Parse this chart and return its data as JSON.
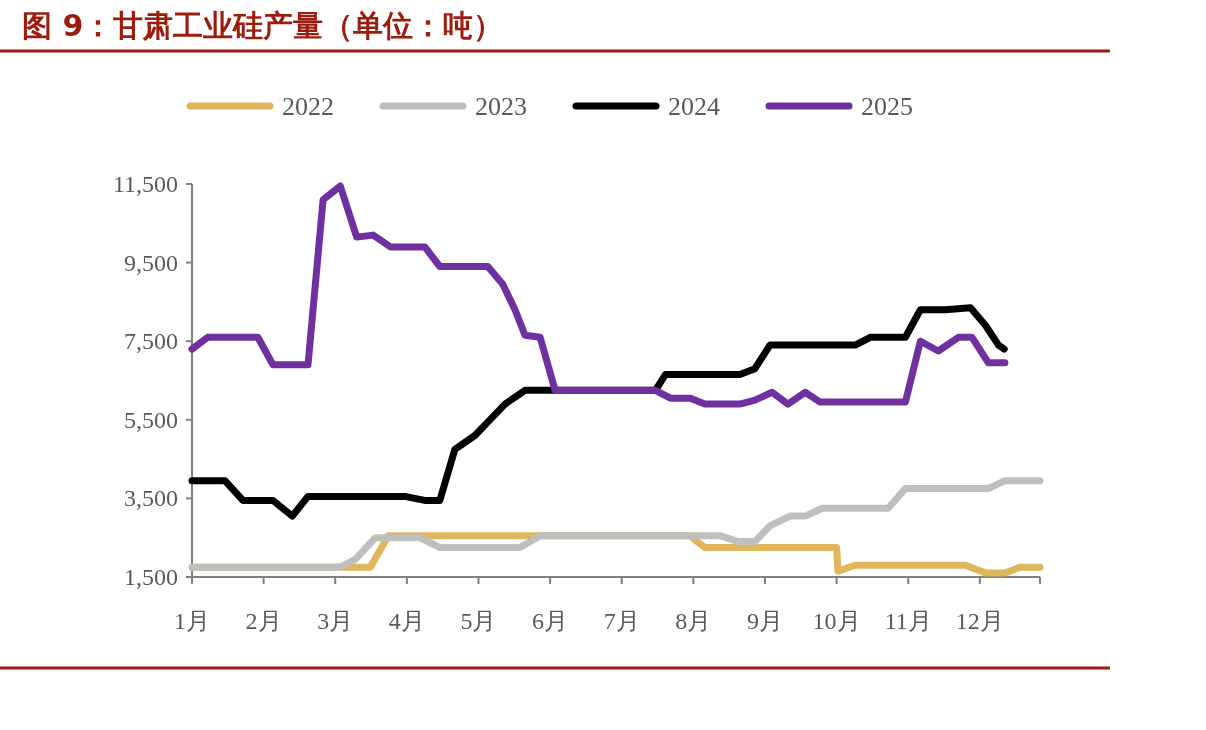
{
  "chart_data": {
    "type": "line",
    "title": "图 9：甘肃工业硅产量（单位：吨）",
    "xlim": [
      1,
      12.84
    ],
    "xticks": [
      {
        "value": 1,
        "label": "1月"
      },
      {
        "value": 2,
        "label": "2月"
      },
      {
        "value": 3,
        "label": "3月"
      },
      {
        "value": 4,
        "label": "4月"
      },
      {
        "value": 5,
        "label": "5月"
      },
      {
        "value": 6,
        "label": "6月"
      },
      {
        "value": 7,
        "label": "7月"
      },
      {
        "value": 8,
        "label": "8月"
      },
      {
        "value": 9,
        "label": "9月"
      },
      {
        "value": 10,
        "label": "10月"
      },
      {
        "value": 11,
        "label": "11月"
      },
      {
        "value": 12,
        "label": "12月"
      }
    ],
    "ylim": [
      1500,
      11500
    ],
    "yticks": [
      {
        "value": 1500,
        "label": "1,500"
      },
      {
        "value": 3500,
        "label": "3,500"
      },
      {
        "value": 5500,
        "label": "5,500"
      },
      {
        "value": 7500,
        "label": "7,500"
      },
      {
        "value": 9500,
        "label": "9,500"
      },
      {
        "value": 11500,
        "label": "11,500"
      }
    ],
    "grid": false,
    "legend": "top",
    "marker": "none",
    "line_style": "solid",
    "series": [
      {
        "name": "2022",
        "color": "#e0b65c",
        "x": [
          1.0,
          3.49,
          3.74,
          7.96,
          8.02,
          8.16,
          10.0,
          10.02,
          10.26,
          11.8,
          12.08,
          12.35,
          12.56,
          12.84
        ],
        "values": [
          1750,
          1750,
          2550,
          2550,
          2450,
          2250,
          2250,
          1650,
          1800,
          1800,
          1600,
          1600,
          1750,
          1750
        ]
      },
      {
        "name": "2023",
        "color": "#bfbfbf",
        "x": [
          1.0,
          3.07,
          3.28,
          3.56,
          4.18,
          4.46,
          5.58,
          5.86,
          8.37,
          8.63,
          8.86,
          9.07,
          9.35,
          9.56,
          9.8,
          10.72,
          10.96,
          12.12,
          12.35,
          12.84
        ],
        "values": [
          1750,
          1750,
          1950,
          2500,
          2500,
          2250,
          2250,
          2550,
          2550,
          2400,
          2400,
          2800,
          3050,
          3050,
          3250,
          3250,
          3750,
          3750,
          3950,
          3950
        ]
      },
      {
        "name": "2024",
        "color": "#000000",
        "x": [
          1.0,
          1.46,
          1.71,
          2.13,
          2.4,
          2.62,
          3.97,
          4.25,
          4.46,
          4.67,
          4.95,
          5.16,
          5.37,
          5.65,
          6.0,
          7.47,
          7.61,
          8.65,
          8.86,
          9.07,
          10.26,
          10.47,
          10.96,
          11.17,
          11.52,
          11.87,
          12.08,
          12.26,
          12.34
        ],
        "values": [
          3950,
          3950,
          3450,
          3450,
          3050,
          3550,
          3550,
          3450,
          3450,
          4750,
          5100,
          5500,
          5900,
          6250,
          6250,
          6250,
          6650,
          6650,
          6800,
          7400,
          7400,
          7600,
          7600,
          8300,
          8300,
          8350,
          7900,
          7400,
          7300
        ]
      },
      {
        "name": "2025",
        "color": "#7030a0",
        "x": [
          1.0,
          1.22,
          1.92,
          2.13,
          2.62,
          2.83,
          3.07,
          3.3,
          3.53,
          3.77,
          4.25,
          4.46,
          5.13,
          5.34,
          5.51,
          5.65,
          5.86,
          6.07,
          7.47,
          7.68,
          7.96,
          8.16,
          8.65,
          8.86,
          9.1,
          9.32,
          9.56,
          9.77,
          10.96,
          11.17,
          11.42,
          11.7,
          11.89,
          12.12,
          12.35
        ],
        "values": [
          7300,
          7600,
          7600,
          6900,
          6900,
          11100,
          11450,
          10150,
          10200,
          9900,
          9900,
          9400,
          9400,
          8950,
          8300,
          7650,
          7600,
          6250,
          6250,
          6050,
          6050,
          5900,
          5900,
          6000,
          6200,
          5900,
          6200,
          5950,
          5950,
          7500,
          7250,
          7600,
          7600,
          6950,
          6950
        ]
      }
    ]
  }
}
